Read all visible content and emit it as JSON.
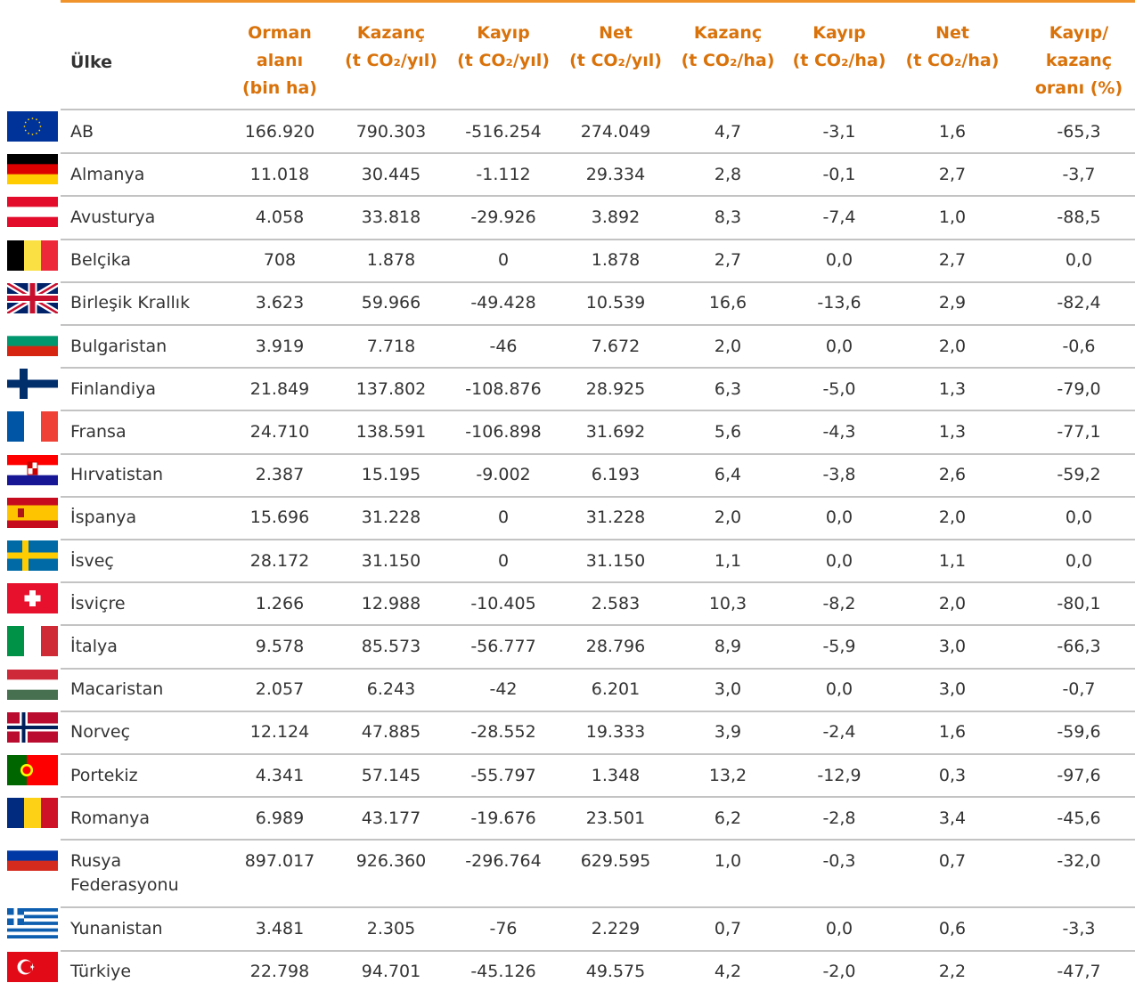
{
  "table": {
    "header": [
      [
        "Ülke"
      ],
      [
        "Orman",
        "alanı",
        "(bin ha)"
      ],
      [
        "Kazanç",
        "(t CO₂/yıl)"
      ],
      [
        "Kayıp",
        "(t CO₂/yıl)"
      ],
      [
        "Net",
        "(t CO₂/yıl)"
      ],
      [
        "Kazanç",
        "(t CO₂/ha)"
      ],
      [
        "Kayıp",
        "(t CO₂/ha)"
      ],
      [
        "Net",
        "(t CO₂/ha)"
      ],
      [
        "Kayıp/",
        "kazanç",
        "oranı (%)"
      ]
    ],
    "rows": [
      [
        "AB",
        "166.920",
        "790.303",
        "-516.254",
        "274.049",
        "4,7",
        "-3,1",
        "1,6",
        "-65,3"
      ],
      [
        "Almanya",
        "11.018",
        "30.445",
        "-1.112",
        "29.334",
        "2,8",
        "-0,1",
        "2,7",
        "-3,7"
      ],
      [
        "Avusturya",
        "4.058",
        "33.818",
        "-29.926",
        "3.892",
        "8,3",
        "-7,4",
        "1,0",
        "-88,5"
      ],
      [
        "Belçika",
        "708",
        "1.878",
        "0",
        "1.878",
        "2,7",
        "0,0",
        "2,7",
        "0,0"
      ],
      [
        "Birleşik Krallık",
        "3.623",
        "59.966",
        "-49.428",
        "10.539",
        "16,6",
        "-13,6",
        "2,9",
        "-82,4"
      ],
      [
        "Bulgaristan",
        "3.919",
        "7.718",
        "-46",
        "7.672",
        "2,0",
        "0,0",
        "2,0",
        "-0,6"
      ],
      [
        "Finlandiya",
        "21.849",
        "137.802",
        "-108.876",
        "28.925",
        "6,3",
        "-5,0",
        "1,3",
        "-79,0"
      ],
      [
        "Fransa",
        "24.710",
        "138.591",
        "-106.898",
        "31.692",
        "5,6",
        "-4,3",
        "1,3",
        "-77,1"
      ],
      [
        "Hırvatistan",
        "2.387",
        "15.195",
        "-9.002",
        "6.193",
        "6,4",
        "-3,8",
        "2,6",
        "-59,2"
      ],
      [
        "İspanya",
        "15.696",
        "31.228",
        "0",
        "31.228",
        "2,0",
        "0,0",
        "2,0",
        "0,0"
      ],
      [
        "İsveç",
        "28.172",
        "31.150",
        "0",
        "31.150",
        "1,1",
        "0,0",
        "1,1",
        "0,0"
      ],
      [
        "İsviçre",
        "1.266",
        "12.988",
        "-10.405",
        "2.583",
        "10,3",
        "-8,2",
        "2,0",
        "-80,1"
      ],
      [
        "İtalya",
        "9.578",
        "85.573",
        "-56.777",
        "28.796",
        "8,9",
        "-5,9",
        "3,0",
        "-66,3"
      ],
      [
        "Macaristan",
        "2.057",
        "6.243",
        "-42",
        "6.201",
        "3,0",
        "0,0",
        "3,0",
        "-0,7"
      ],
      [
        "Norveç",
        "12.124",
        "47.885",
        "-28.552",
        "19.333",
        "3,9",
        "-2,4",
        "1,6",
        "-59,6"
      ],
      [
        "Portekiz",
        "4.341",
        "57.145",
        "-55.797",
        "1.348",
        "13,2",
        "-12,9",
        "0,3",
        "-97,6"
      ],
      [
        "Romanya",
        "6.989",
        "43.177",
        "-19.676",
        "23.501",
        "6,2",
        "-2,8",
        "3,4",
        "-45,6"
      ],
      [
        "Rusya Federasyonu",
        "897.017",
        "926.360",
        "-296.764",
        "629.595",
        "1,0",
        "-0,3",
        "0,7",
        "-32,0"
      ],
      [
        "Yunanistan",
        "3.481",
        "2.305",
        "-76",
        "2.229",
        "0,7",
        "0,0",
        "0,6",
        "-3,3"
      ],
      [
        "Türkiye",
        "22.798",
        "94.701",
        "-45.126",
        "49.575",
        "4,2",
        "-2,0",
        "2,2",
        "-47,7"
      ]
    ]
  }
}
